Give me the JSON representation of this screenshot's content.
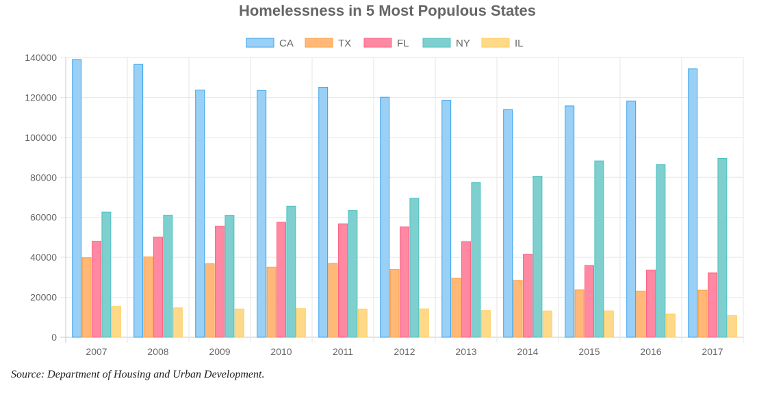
{
  "chart_data": {
    "type": "bar",
    "title": "Homelessness in 5 Most Populous States",
    "categories": [
      "2007",
      "2008",
      "2009",
      "2010",
      "2011",
      "2012",
      "2013",
      "2014",
      "2015",
      "2016",
      "2017"
    ],
    "series": [
      {
        "name": "CA",
        "fill": "#9ad0f5",
        "stroke": "#36a2eb",
        "values": [
          138986,
          136531,
          123678,
          123480,
          125128,
          120098,
          118552,
          113952,
          115738,
          118142,
          134278
        ]
      },
      {
        "name": "TX",
        "fill": "#ffb878",
        "stroke": "#ff9f40",
        "values": [
          39788,
          40190,
          36761,
          35121,
          36911,
          34052,
          29615,
          28495,
          23678,
          23122,
          23548
        ]
      },
      {
        "name": "FL",
        "fill": "#ff88a2",
        "stroke": "#ff6384",
        "values": [
          48069,
          50158,
          55599,
          57551,
          56771,
          55170,
          47862,
          41542,
          35900,
          33559,
          32190
        ]
      },
      {
        "name": "NY",
        "fill": "#7fcfcf",
        "stroke": "#4bc0c0",
        "values": [
          62601,
          61125,
          61067,
          65606,
          63445,
          69566,
          77430,
          80590,
          88250,
          86352,
          89503
        ]
      },
      {
        "name": "IL",
        "fill": "#ffd98a",
        "stroke": "#ffcd56",
        "values": [
          15487,
          14724,
          14055,
          14395,
          14009,
          14144,
          13425,
          13107,
          13177,
          11590,
          10798
        ]
      }
    ],
    "y_ticks": [
      "0",
      "20000",
      "40000",
      "60000",
      "80000",
      "100000",
      "120000",
      "140000"
    ],
    "ylim": [
      0,
      140000
    ],
    "grid": true,
    "legend_position": "top-center",
    "xlabel": "",
    "ylabel": ""
  },
  "source_note": "Source: Department of Housing and Urban Development."
}
